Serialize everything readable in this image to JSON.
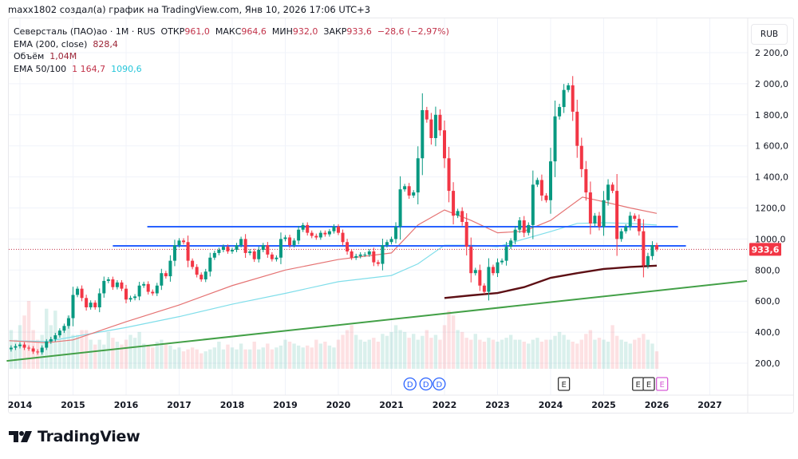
{
  "header": {
    "title": "maxx1802 создал(а) график на TradingView.com, Янв 10, 2026 17:06 UTC+3"
  },
  "legend": {
    "symbol": "Северсталь (ПАО)ао · 1M · RUS",
    "open_label": "ОТКР",
    "open": "961,0",
    "high_label": "МАКС",
    "high": "964,6",
    "low_label": "МИН",
    "low": "932,0",
    "close_label": "ЗАКР",
    "close": "933,6",
    "change": "−28,6 (−2,97%)",
    "ema200_label": "EMA (200, close)",
    "ema200": "828,4",
    "volume_label": "Объём",
    "volume": "1,04M",
    "ema50_100_label": "EMA 50/100",
    "ema50": "1 164,7",
    "ema100": "1090,6"
  },
  "currency_button": "RUB",
  "logo_text": "TradingView",
  "colors": {
    "up": "#089981",
    "down": "#f23645",
    "ema50": "#e57373",
    "ema100": "#80deea",
    "ema200": "#5d0f14",
    "trend": "#43a047",
    "level": "#2962ff"
  },
  "chart_data": {
    "type": "candlestick",
    "interval": "1M",
    "start": "2013-11",
    "ylim": [
      0,
      2300
    ],
    "y_ticks": [
      {
        "v": 200,
        "label": "200,0"
      },
      {
        "v": 400,
        "label": "400,0"
      },
      {
        "v": 600,
        "label": "600,0"
      },
      {
        "v": 800,
        "label": "800,0"
      },
      {
        "v": 1000,
        "label": "1000,0"
      },
      {
        "v": 1200,
        "label": "1200,0"
      },
      {
        "v": 1400,
        "label": "1 400,0"
      },
      {
        "v": 1600,
        "label": "1 600,0"
      },
      {
        "v": 1800,
        "label": "1 800,0"
      },
      {
        "v": 2000,
        "label": "2 000,0"
      },
      {
        "v": 2200,
        "label": "2 200,0"
      }
    ],
    "x_ticks": [
      "2014",
      "2015",
      "2016",
      "2017",
      "2018",
      "2019",
      "2020",
      "2021",
      "2022",
      "2023",
      "2024",
      "2025",
      "2026",
      "2027"
    ],
    "last_price": 933.6,
    "last_price_label": "933,6",
    "closes": [
      300,
      310,
      320,
      300,
      295,
      275,
      270,
      300,
      340,
      355,
      380,
      410,
      440,
      490,
      640,
      680,
      620,
      560,
      590,
      560,
      650,
      730,
      740,
      690,
      720,
      680,
      610,
      620,
      630,
      700,
      710,
      660,
      650,
      700,
      780,
      760,
      860,
      960,
      990,
      980,
      860,
      820,
      770,
      740,
      790,
      880,
      910,
      930,
      950,
      920,
      930,
      960,
      1000,
      910,
      920,
      870,
      930,
      960,
      900,
      870,
      880,
      1000,
      1010,
      960,
      990,
      1060,
      1090,
      1040,
      1020,
      1010,
      1040,
      1030,
      1050,
      1080,
      1040,
      980,
      920,
      880,
      890,
      900,
      900,
      920,
      850,
      840,
      960,
      980,
      1000,
      1080,
      1320,
      1340,
      1280,
      1300,
      1520,
      1830,
      1770,
      1650,
      1800,
      1700,
      1520,
      1310,
      1150,
      1180,
      1110,
      950,
      780,
      800,
      700,
      660,
      820,
      780,
      850,
      860,
      950,
      990,
      1060,
      1120,
      1040,
      1090,
      1350,
      1380,
      1280,
      1250,
      1500,
      1790,
      1850,
      1960,
      1990,
      1820,
      1600,
      1450,
      1300,
      1100,
      1150,
      1080,
      1250,
      1350,
      1310,
      1000,
      1050,
      1080,
      1150,
      1130,
      1050,
      830,
      890,
      961,
      933.6
    ],
    "volumes": [
      40,
      30,
      45,
      55,
      70,
      40,
      30,
      35,
      62,
      45,
      60,
      38,
      40,
      55,
      35,
      35,
      40,
      40,
      30,
      25,
      30,
      25,
      38,
      32,
      28,
      25,
      30,
      35,
      32,
      38,
      26,
      24,
      22,
      28,
      30,
      25,
      24,
      20,
      22,
      18,
      20,
      22,
      20,
      16,
      18,
      20,
      22,
      28,
      20,
      25,
      22,
      20,
      26,
      20,
      20,
      28,
      20,
      22,
      26,
      20,
      22,
      24,
      30,
      28,
      26,
      24,
      22,
      24,
      22,
      30,
      26,
      28,
      24,
      22,
      30,
      35,
      40,
      45,
      35,
      30,
      28,
      30,
      32,
      28,
      36,
      34,
      38,
      45,
      40,
      38,
      32,
      36,
      30,
      34,
      40,
      32,
      35,
      30,
      45,
      60,
      55,
      40,
      38,
      32,
      30,
      36,
      30,
      28,
      32,
      30,
      28,
      30,
      32,
      35,
      30,
      30,
      28,
      26,
      30,
      32,
      28,
      30,
      30,
      34,
      38,
      35,
      30,
      28,
      26,
      30,
      36,
      40,
      30,
      32,
      30,
      28,
      45,
      34,
      30,
      28,
      26,
      30,
      32,
      36,
      30,
      26,
      18
    ],
    "ema50": [
      [
        2013.8,
        345
      ],
      [
        2014.5,
        332
      ],
      [
        2015,
        350
      ],
      [
        2016,
        467
      ],
      [
        2017,
        575
      ],
      [
        2018,
        700
      ],
      [
        2019,
        800
      ],
      [
        2020,
        868
      ],
      [
        2021,
        910
      ],
      [
        2021.5,
        1090
      ],
      [
        2022,
        1187
      ],
      [
        2022.5,
        1120
      ],
      [
        2023,
        1040
      ],
      [
        2023.5,
        1050
      ],
      [
        2024,
        1120
      ],
      [
        2024.6,
        1270
      ],
      [
        2025,
        1240
      ],
      [
        2025.5,
        1200
      ],
      [
        2026,
        1165
      ]
    ],
    "ema100": [
      [
        2013.8,
        345
      ],
      [
        2014.5,
        340
      ],
      [
        2015,
        370
      ],
      [
        2016,
        430
      ],
      [
        2017,
        500
      ],
      [
        2018,
        580
      ],
      [
        2019,
        650
      ],
      [
        2020,
        725
      ],
      [
        2021,
        765
      ],
      [
        2021.5,
        840
      ],
      [
        2022,
        960
      ],
      [
        2022.5,
        960
      ],
      [
        2023,
        950
      ],
      [
        2023.5,
        1000
      ],
      [
        2024,
        1048
      ],
      [
        2024.5,
        1100
      ],
      [
        2025,
        1105
      ],
      [
        2025.5,
        1100
      ],
      [
        2026,
        1090
      ]
    ],
    "ema200": [
      [
        2022,
        620
      ],
      [
        2022.5,
        637
      ],
      [
        2023,
        652
      ],
      [
        2023.5,
        690
      ],
      [
        2024,
        750
      ],
      [
        2024.5,
        780
      ],
      [
        2025,
        807
      ],
      [
        2025.5,
        820
      ],
      [
        2026,
        828
      ]
    ],
    "trendline": [
      [
        2013.75,
        215
      ],
      [
        2027.7,
        730
      ]
    ],
    "levels": [
      {
        "value": 1079,
        "from": 2016.4,
        "to": 2026.4
      },
      {
        "value": 956,
        "from": 2015.75,
        "to": 2026.55
      }
    ],
    "events": [
      {
        "type": "D",
        "t": 2021.35
      },
      {
        "type": "D",
        "t": 2021.65
      },
      {
        "type": "D",
        "t": 2021.9
      },
      {
        "type": "E",
        "t": 2024.25
      },
      {
        "type": "E",
        "t": 2025.65
      },
      {
        "type": "E",
        "t": 2025.85
      },
      {
        "type": "E-upcoming",
        "t": 2026.1
      }
    ]
  }
}
